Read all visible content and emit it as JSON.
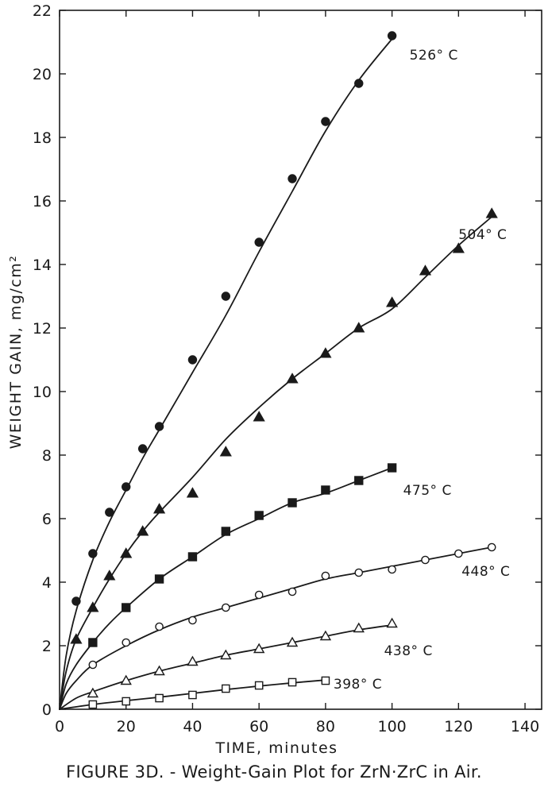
{
  "caption": "FIGURE 3D. - Weight-Gain Plot for ZrN·ZrC in Air.",
  "chart_data": {
    "type": "line",
    "title": "",
    "xlabel": "TIME, minutes",
    "ylabel": "WEIGHT GAIN, mg/cm²",
    "xlim": [
      0,
      145
    ],
    "ylim": [
      0,
      22
    ],
    "xticks": [
      0,
      20,
      40,
      60,
      80,
      100,
      120,
      140
    ],
    "yticks": [
      0,
      2,
      4,
      6,
      8,
      10,
      12,
      14,
      16,
      18,
      20,
      22
    ],
    "grid": false,
    "series": [
      {
        "name": "526° C",
        "marker": "filled-circle",
        "x": [
          5,
          10,
          15,
          20,
          25,
          30,
          40,
          50,
          60,
          70,
          80,
          90,
          100
        ],
        "y": [
          3.4,
          4.9,
          6.2,
          7.0,
          8.2,
          8.9,
          11.0,
          13.0,
          14.7,
          16.7,
          18.5,
          19.7,
          21.2
        ],
        "curve_x": [
          0,
          2,
          5,
          10,
          15,
          20,
          25,
          30,
          40,
          50,
          60,
          70,
          80,
          90,
          100
        ],
        "curve_y": [
          0,
          1.7,
          3.1,
          4.7,
          5.9,
          6.9,
          7.9,
          8.8,
          10.6,
          12.4,
          14.4,
          16.3,
          18.2,
          19.8,
          21.1
        ]
      },
      {
        "name": "504° C",
        "marker": "filled-triangle",
        "x": [
          5,
          10,
          15,
          20,
          25,
          30,
          40,
          50,
          60,
          70,
          80,
          90,
          100,
          110,
          120,
          130
        ],
        "y": [
          2.2,
          3.2,
          4.2,
          4.9,
          5.6,
          6.3,
          6.8,
          8.1,
          9.2,
          10.4,
          11.2,
          12.0,
          12.8,
          13.8,
          14.5,
          15.6
        ],
        "curve_x": [
          0,
          2,
          5,
          10,
          15,
          20,
          25,
          30,
          40,
          50,
          60,
          70,
          80,
          90,
          100,
          110,
          120,
          130
        ],
        "curve_y": [
          0,
          1.2,
          2.2,
          3.2,
          4.1,
          4.9,
          5.6,
          6.2,
          7.3,
          8.5,
          9.5,
          10.4,
          11.2,
          12.0,
          12.6,
          13.6,
          14.6,
          15.5
        ]
      },
      {
        "name": "475° C",
        "marker": "filled-square",
        "x": [
          10,
          20,
          30,
          40,
          50,
          60,
          70,
          80,
          90,
          100
        ],
        "y": [
          2.1,
          3.2,
          4.1,
          4.8,
          5.6,
          6.1,
          6.5,
          6.9,
          7.2,
          7.6
        ],
        "curve_x": [
          0,
          2,
          5,
          10,
          15,
          20,
          30,
          40,
          50,
          60,
          70,
          80,
          90,
          100
        ],
        "curve_y": [
          0,
          0.8,
          1.4,
          2.1,
          2.7,
          3.2,
          4.1,
          4.8,
          5.5,
          6.0,
          6.5,
          6.8,
          7.2,
          7.6
        ]
      },
      {
        "name": "448° C",
        "marker": "open-circle",
        "x": [
          10,
          20,
          30,
          40,
          50,
          60,
          70,
          80,
          90,
          100,
          110,
          120,
          130
        ],
        "y": [
          1.4,
          2.1,
          2.6,
          2.8,
          3.2,
          3.6,
          3.7,
          4.2,
          4.3,
          4.4,
          4.7,
          4.9,
          5.1
        ],
        "curve_x": [
          0,
          2,
          5,
          10,
          20,
          30,
          40,
          50,
          60,
          70,
          80,
          90,
          100,
          110,
          120,
          130
        ],
        "curve_y": [
          0,
          0.5,
          0.9,
          1.4,
          2.0,
          2.5,
          2.9,
          3.2,
          3.5,
          3.8,
          4.1,
          4.3,
          4.5,
          4.7,
          4.9,
          5.1
        ]
      },
      {
        "name": "438° C",
        "marker": "open-triangle",
        "x": [
          10,
          20,
          30,
          40,
          50,
          60,
          70,
          80,
          90,
          100
        ],
        "y": [
          0.5,
          0.9,
          1.2,
          1.5,
          1.7,
          1.9,
          2.1,
          2.3,
          2.55,
          2.7
        ],
        "curve_x": [
          0,
          5,
          10,
          20,
          30,
          40,
          50,
          60,
          70,
          80,
          90,
          100
        ],
        "curve_y": [
          0,
          0.35,
          0.55,
          0.9,
          1.2,
          1.45,
          1.7,
          1.9,
          2.1,
          2.3,
          2.5,
          2.65
        ]
      },
      {
        "name": "398° C",
        "marker": "open-square",
        "x": [
          10,
          20,
          30,
          40,
          50,
          60,
          70,
          80
        ],
        "y": [
          0.15,
          0.25,
          0.35,
          0.45,
          0.65,
          0.75,
          0.85,
          0.9
        ],
        "curve_x": [
          0,
          10,
          20,
          30,
          40,
          50,
          60,
          70,
          80
        ],
        "curve_y": [
          0,
          0.15,
          0.27,
          0.38,
          0.5,
          0.62,
          0.73,
          0.83,
          0.92
        ]
      }
    ]
  }
}
